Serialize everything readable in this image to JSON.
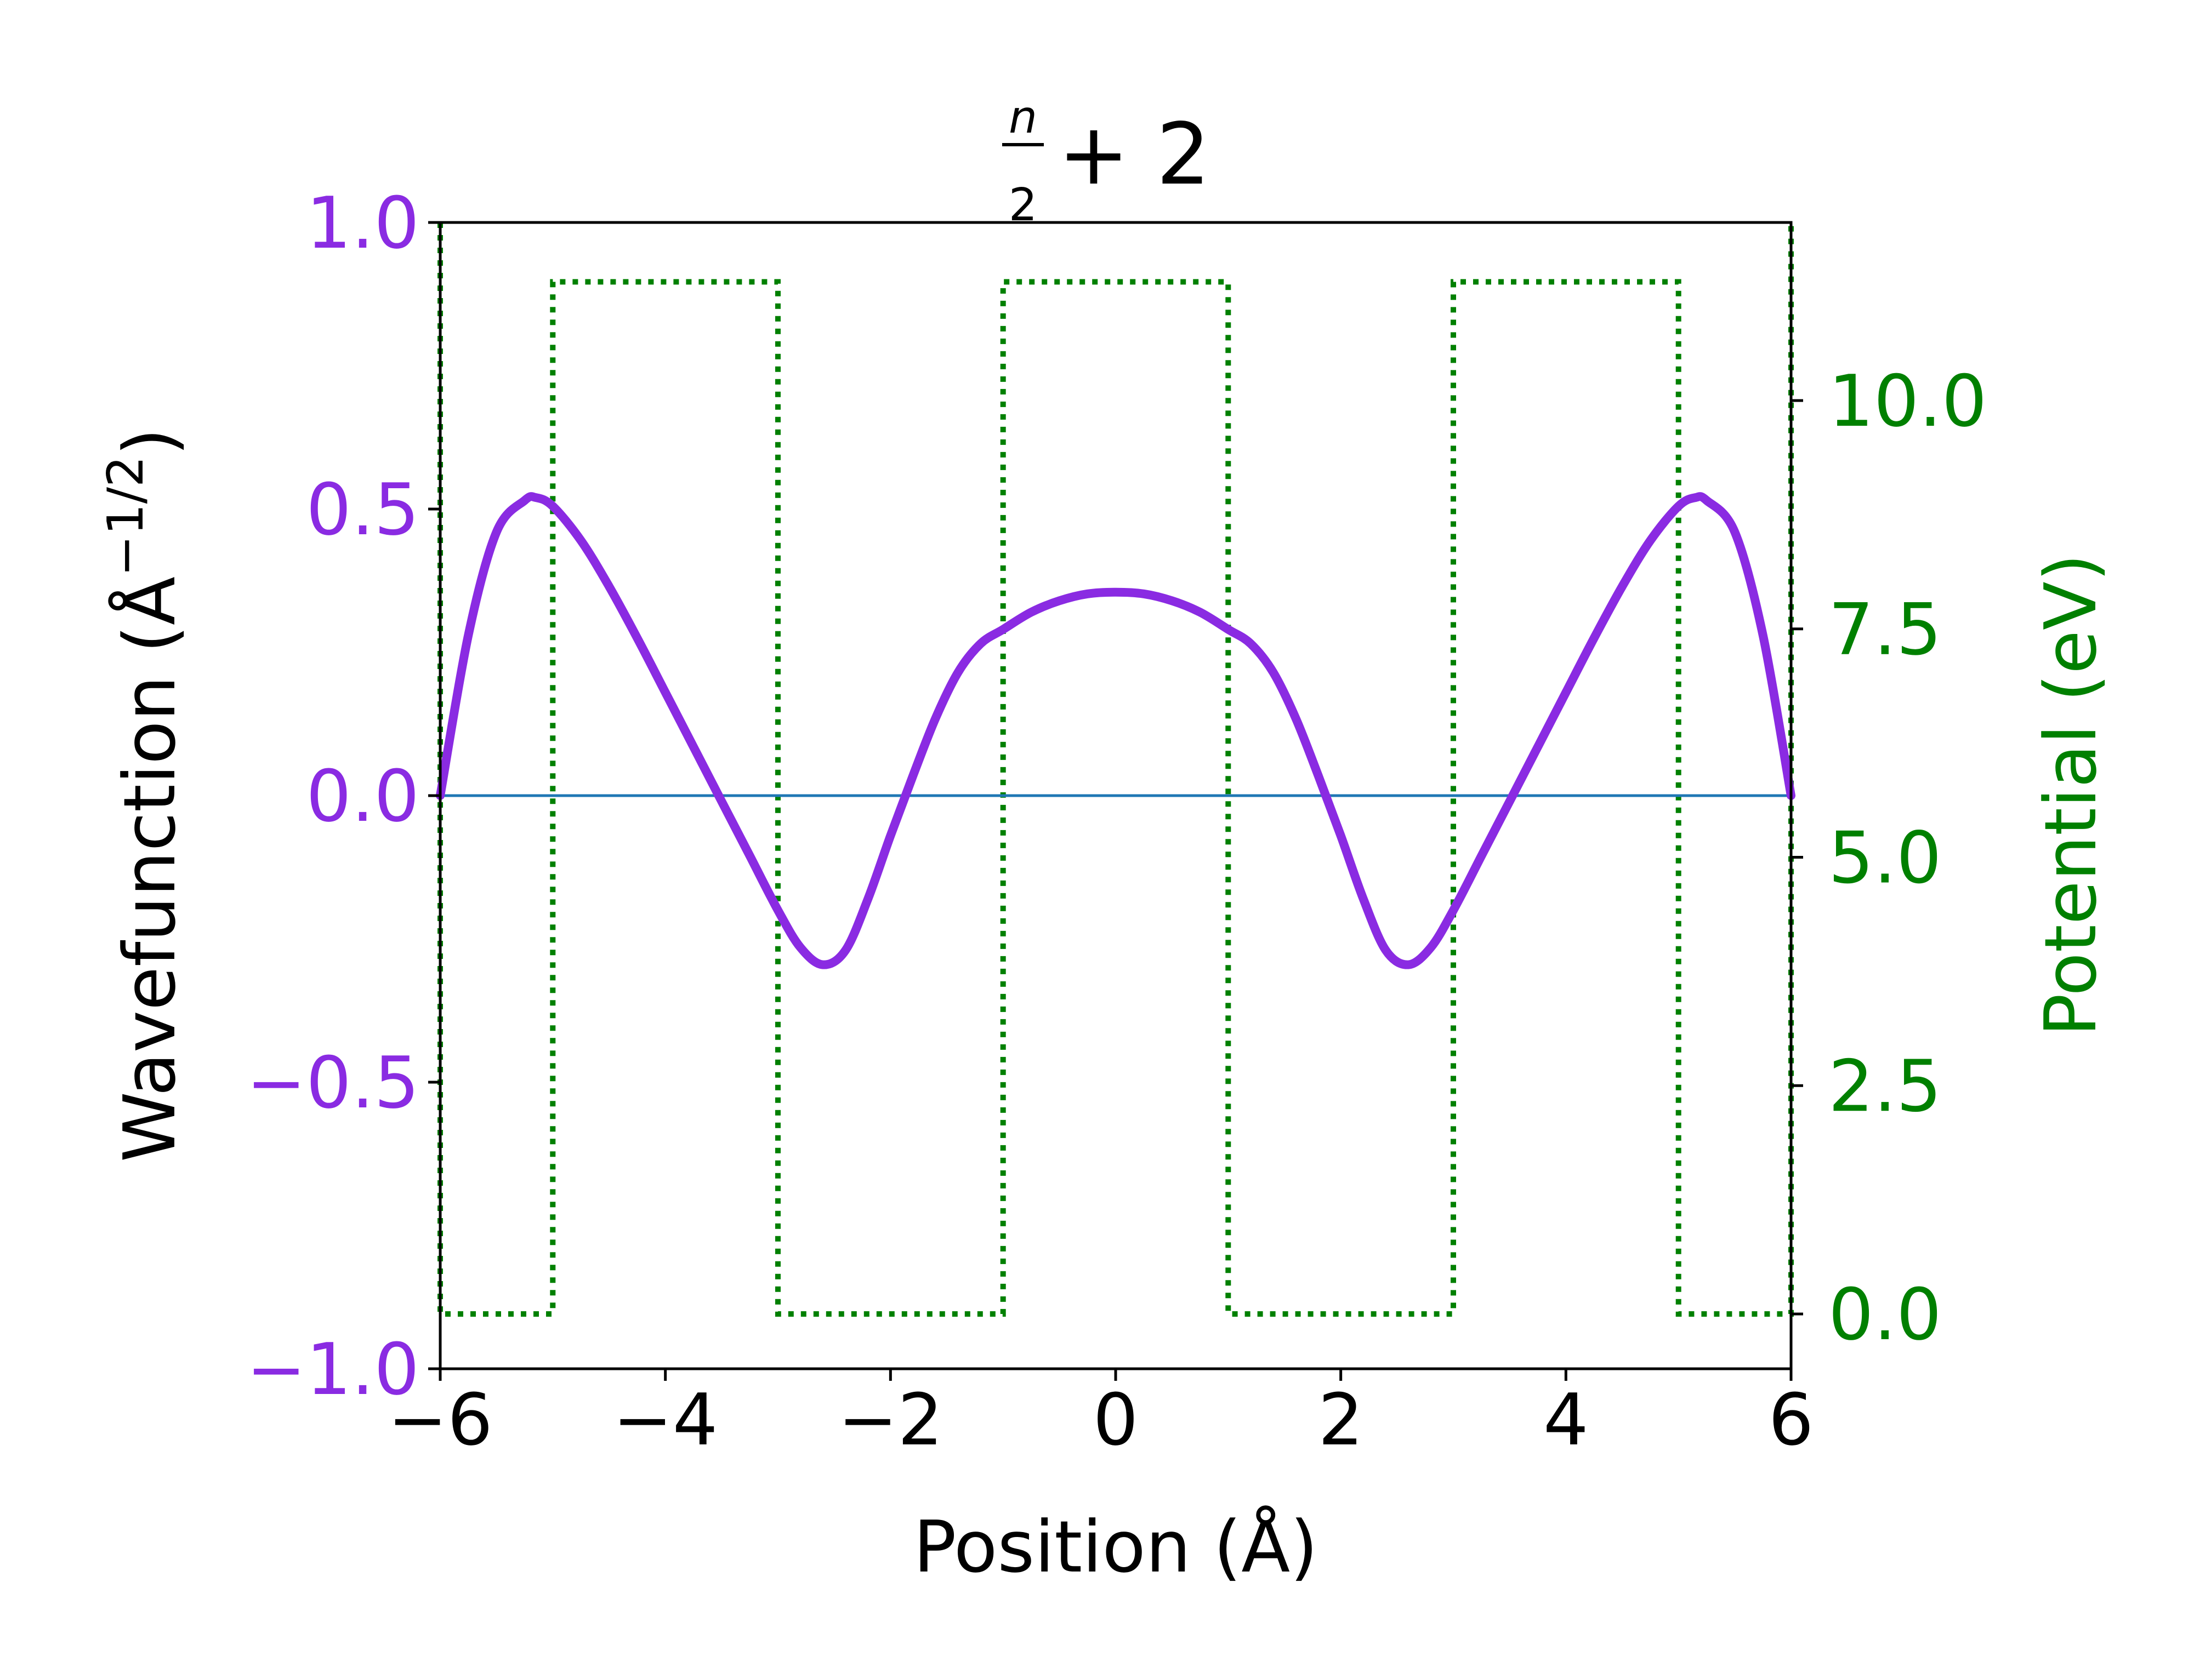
{
  "chart_data": {
    "type": "line",
    "title": {
      "main": "+ 2",
      "frac_num": "n",
      "frac_den": "2"
    },
    "xlabel": "Position (Å)",
    "ylabel_left": {
      "main": "Wavefunction (Å",
      "sup": "−1/2",
      "close": ")"
    },
    "ylabel_right": "Potential (eV)",
    "xlim": [
      -6,
      6
    ],
    "ylim_left": [
      -1.0,
      1.0
    ],
    "ylim_right": [
      -0.6,
      11.95
    ],
    "x_ticks": [
      -6,
      -4,
      -2,
      0,
      2,
      4,
      6
    ],
    "x_tick_labels": [
      "−6",
      "−4",
      "−2",
      "0",
      "2",
      "4",
      "6"
    ],
    "y_left_ticks": [
      -1.0,
      -0.5,
      0.0,
      0.5,
      1.0
    ],
    "y_left_tick_labels": [
      "−1.0",
      "−0.5",
      "0.0",
      "0.5",
      "1.0"
    ],
    "y_right_ticks": [
      0.0,
      2.5,
      5.0,
      7.5,
      10.0
    ],
    "y_right_tick_labels": [
      "0.0",
      "2.5",
      "5.0",
      "7.5",
      "10.0"
    ],
    "colors": {
      "wavefunction": "#8a2be2",
      "potential": "#008000",
      "zero_line": "#1f77b4",
      "axes": "#000000"
    },
    "grid": false,
    "series": [
      {
        "axis": "left",
        "style": "solid",
        "x": [
          -6.0,
          -5.75,
          -5.5,
          -5.25,
          -5.15,
          -5.0,
          -4.75,
          -4.5,
          -4.25,
          -4.0,
          -3.75,
          -3.5,
          -3.25,
          -3.0,
          -2.8,
          -2.6,
          -2.4,
          -2.2,
          -2.0,
          -1.8,
          -1.6,
          -1.4,
          -1.2,
          -1.0,
          -0.75,
          -0.5,
          -0.25,
          0.0,
          0.25,
          0.5,
          0.75,
          1.0,
          1.2,
          1.4,
          1.6,
          1.8,
          2.0,
          2.2,
          2.4,
          2.6,
          2.8,
          3.0,
          3.25,
          3.5,
          3.75,
          4.0,
          4.25,
          4.5,
          4.75,
          5.0,
          5.15,
          5.25,
          5.5,
          5.75,
          6.0
        ],
        "y": [
          0.0,
          0.28,
          0.46,
          0.515,
          0.52,
          0.505,
          0.445,
          0.365,
          0.275,
          0.18,
          0.085,
          -0.01,
          -0.105,
          -0.2,
          -0.265,
          -0.295,
          -0.27,
          -0.18,
          -0.07,
          0.035,
          0.135,
          0.215,
          0.265,
          0.29,
          0.32,
          0.34,
          0.352,
          0.355,
          0.352,
          0.34,
          0.32,
          0.29,
          0.265,
          0.215,
          0.135,
          0.035,
          -0.07,
          -0.18,
          -0.27,
          -0.295,
          -0.265,
          -0.2,
          -0.105,
          -0.01,
          0.085,
          0.18,
          0.275,
          0.365,
          0.445,
          0.505,
          0.52,
          0.515,
          0.46,
          0.28,
          0.0
        ]
      },
      {
        "axis": "right",
        "style": "dotted",
        "x": [
          -6,
          -6,
          -5,
          -5,
          -3,
          -3,
          -1,
          -1,
          1,
          1,
          3,
          3,
          5,
          5,
          6,
          6
        ],
        "y": [
          11.95,
          0,
          0,
          11.3,
          11.3,
          0,
          0,
          11.3,
          11.3,
          0,
          0,
          11.3,
          11.3,
          0,
          0,
          11.95
        ]
      },
      {
        "axis": "left",
        "style": "solid-thin",
        "x": [
          -6,
          6
        ],
        "y": [
          0,
          0
        ]
      }
    ]
  }
}
